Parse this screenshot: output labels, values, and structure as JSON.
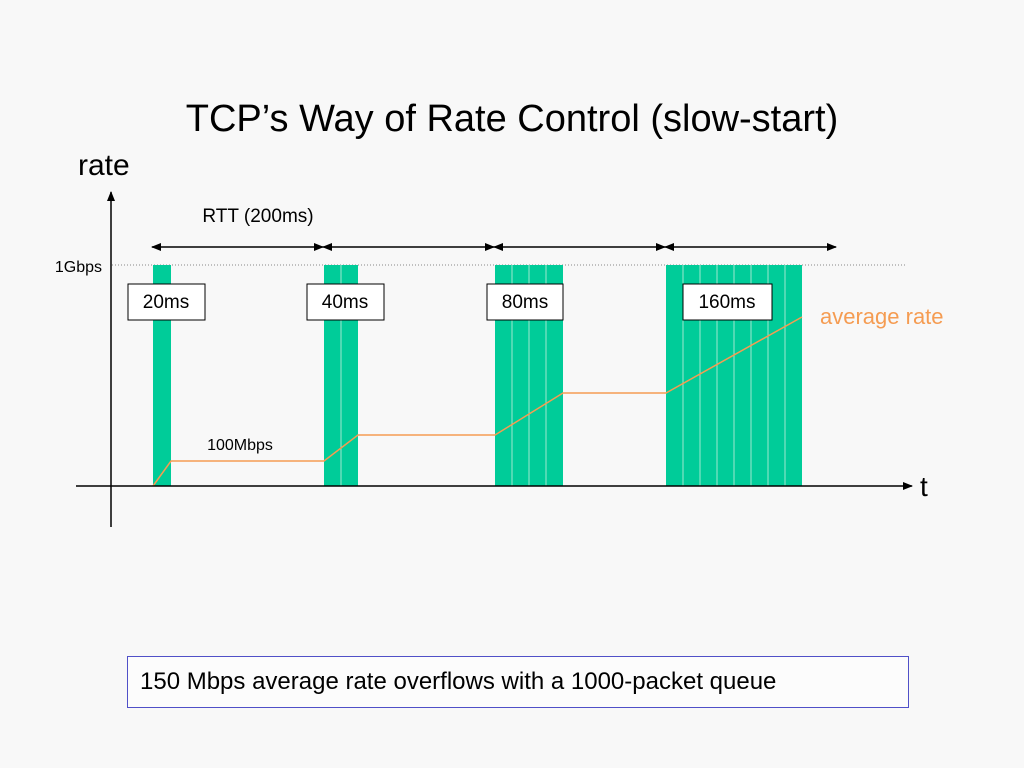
{
  "title": "TCP’s Way of Rate Control (slow-start)",
  "axes": {
    "y_label": "rate",
    "x_label": "t",
    "y_tick": "1Gbps"
  },
  "rtt_label": "RTT (200ms)",
  "bursts": [
    {
      "label": "20ms"
    },
    {
      "label": "40ms"
    },
    {
      "label": "80ms"
    },
    {
      "label": "160ms"
    }
  ],
  "rate_labels": {
    "low": "100Mbps",
    "average": "average rate"
  },
  "note": "150 Mbps average rate overflows with a 1000-packet queue",
  "colors": {
    "burst_fill": "#00cc99",
    "average_line": "#f59c52",
    "axis": "#000000",
    "note_border": "#5050c8"
  }
}
